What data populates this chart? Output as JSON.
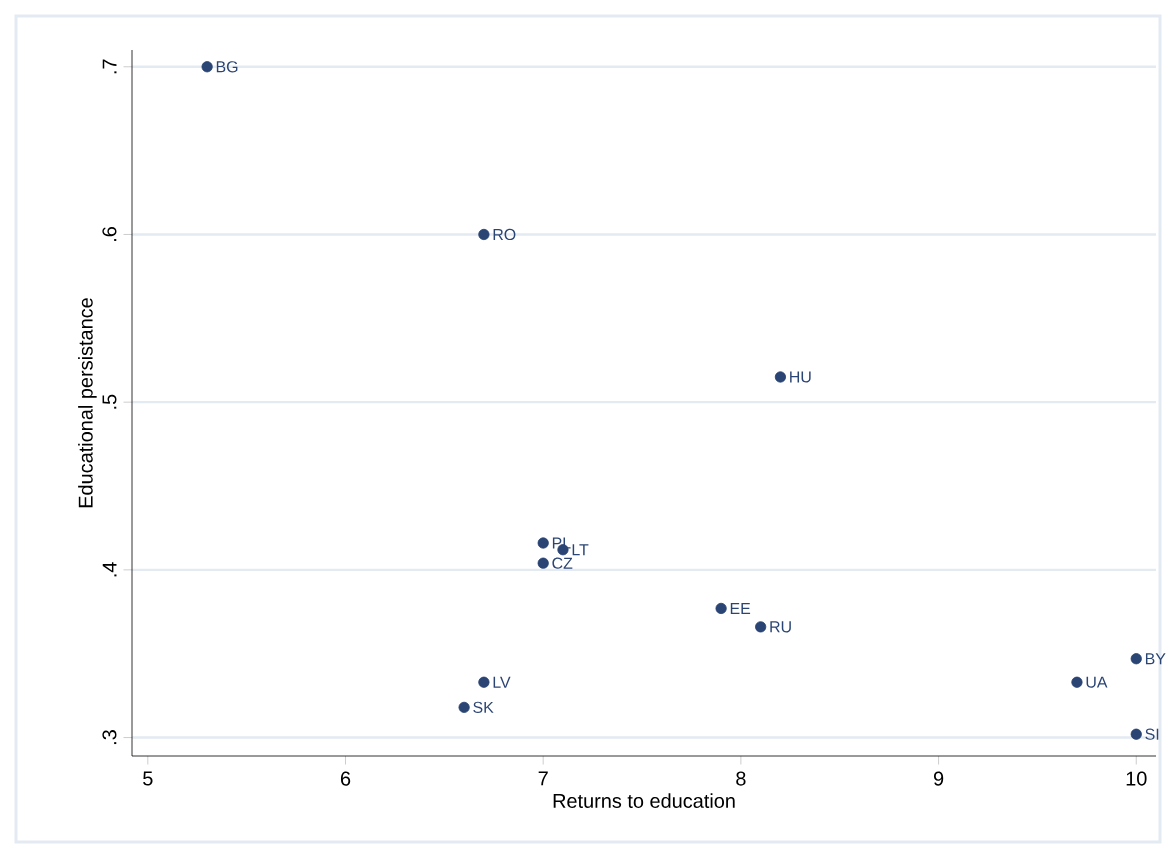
{
  "chart_data": {
    "type": "scatter",
    "xlabel": "Returns to education",
    "ylabel": "Educational persistance",
    "x": [
      5.3,
      6.7,
      8.2,
      7.0,
      7.1,
      7.0,
      7.9,
      8.1,
      6.7,
      6.6,
      10.0,
      9.7,
      10.0
    ],
    "values": [
      0.7,
      0.6,
      0.515,
      0.416,
      0.412,
      0.404,
      0.377,
      0.366,
      0.333,
      0.318,
      0.347,
      0.333,
      0.302
    ],
    "color": "#2a4474",
    "marker": "circle",
    "annotations": [
      {
        "text": "BG",
        "x": 5.3,
        "y": 0.7
      },
      {
        "text": "RO",
        "x": 6.7,
        "y": 0.6
      },
      {
        "text": "HU",
        "x": 8.2,
        "y": 0.515
      },
      {
        "text": "PL",
        "x": 7.0,
        "y": 0.416
      },
      {
        "text": "LT",
        "x": 7.1,
        "y": 0.412
      },
      {
        "text": "CZ",
        "x": 7.0,
        "y": 0.404
      },
      {
        "text": "EE",
        "x": 7.9,
        "y": 0.377
      },
      {
        "text": "RU",
        "x": 8.1,
        "y": 0.366
      },
      {
        "text": "LV",
        "x": 6.7,
        "y": 0.333
      },
      {
        "text": "SK",
        "x": 6.6,
        "y": 0.318
      },
      {
        "text": "BY",
        "x": 10.0,
        "y": 0.347
      },
      {
        "text": "UA",
        "x": 9.7,
        "y": 0.333
      },
      {
        "text": "SI",
        "x": 10.0,
        "y": 0.302
      }
    ],
    "xlim": [
      4.92,
      10.1
    ],
    "ylim": [
      0.289,
      0.71
    ],
    "xticks": [
      5,
      6,
      7,
      8,
      9,
      10
    ],
    "yticks": [
      {
        "value": 0.3,
        "label": ".3"
      },
      {
        "value": 0.4,
        "label": ".4"
      },
      {
        "value": 0.5,
        "label": ".5"
      },
      {
        "value": 0.6,
        "label": ".6"
      },
      {
        "value": 0.7,
        "label": ".7"
      }
    ],
    "grid": "y"
  }
}
